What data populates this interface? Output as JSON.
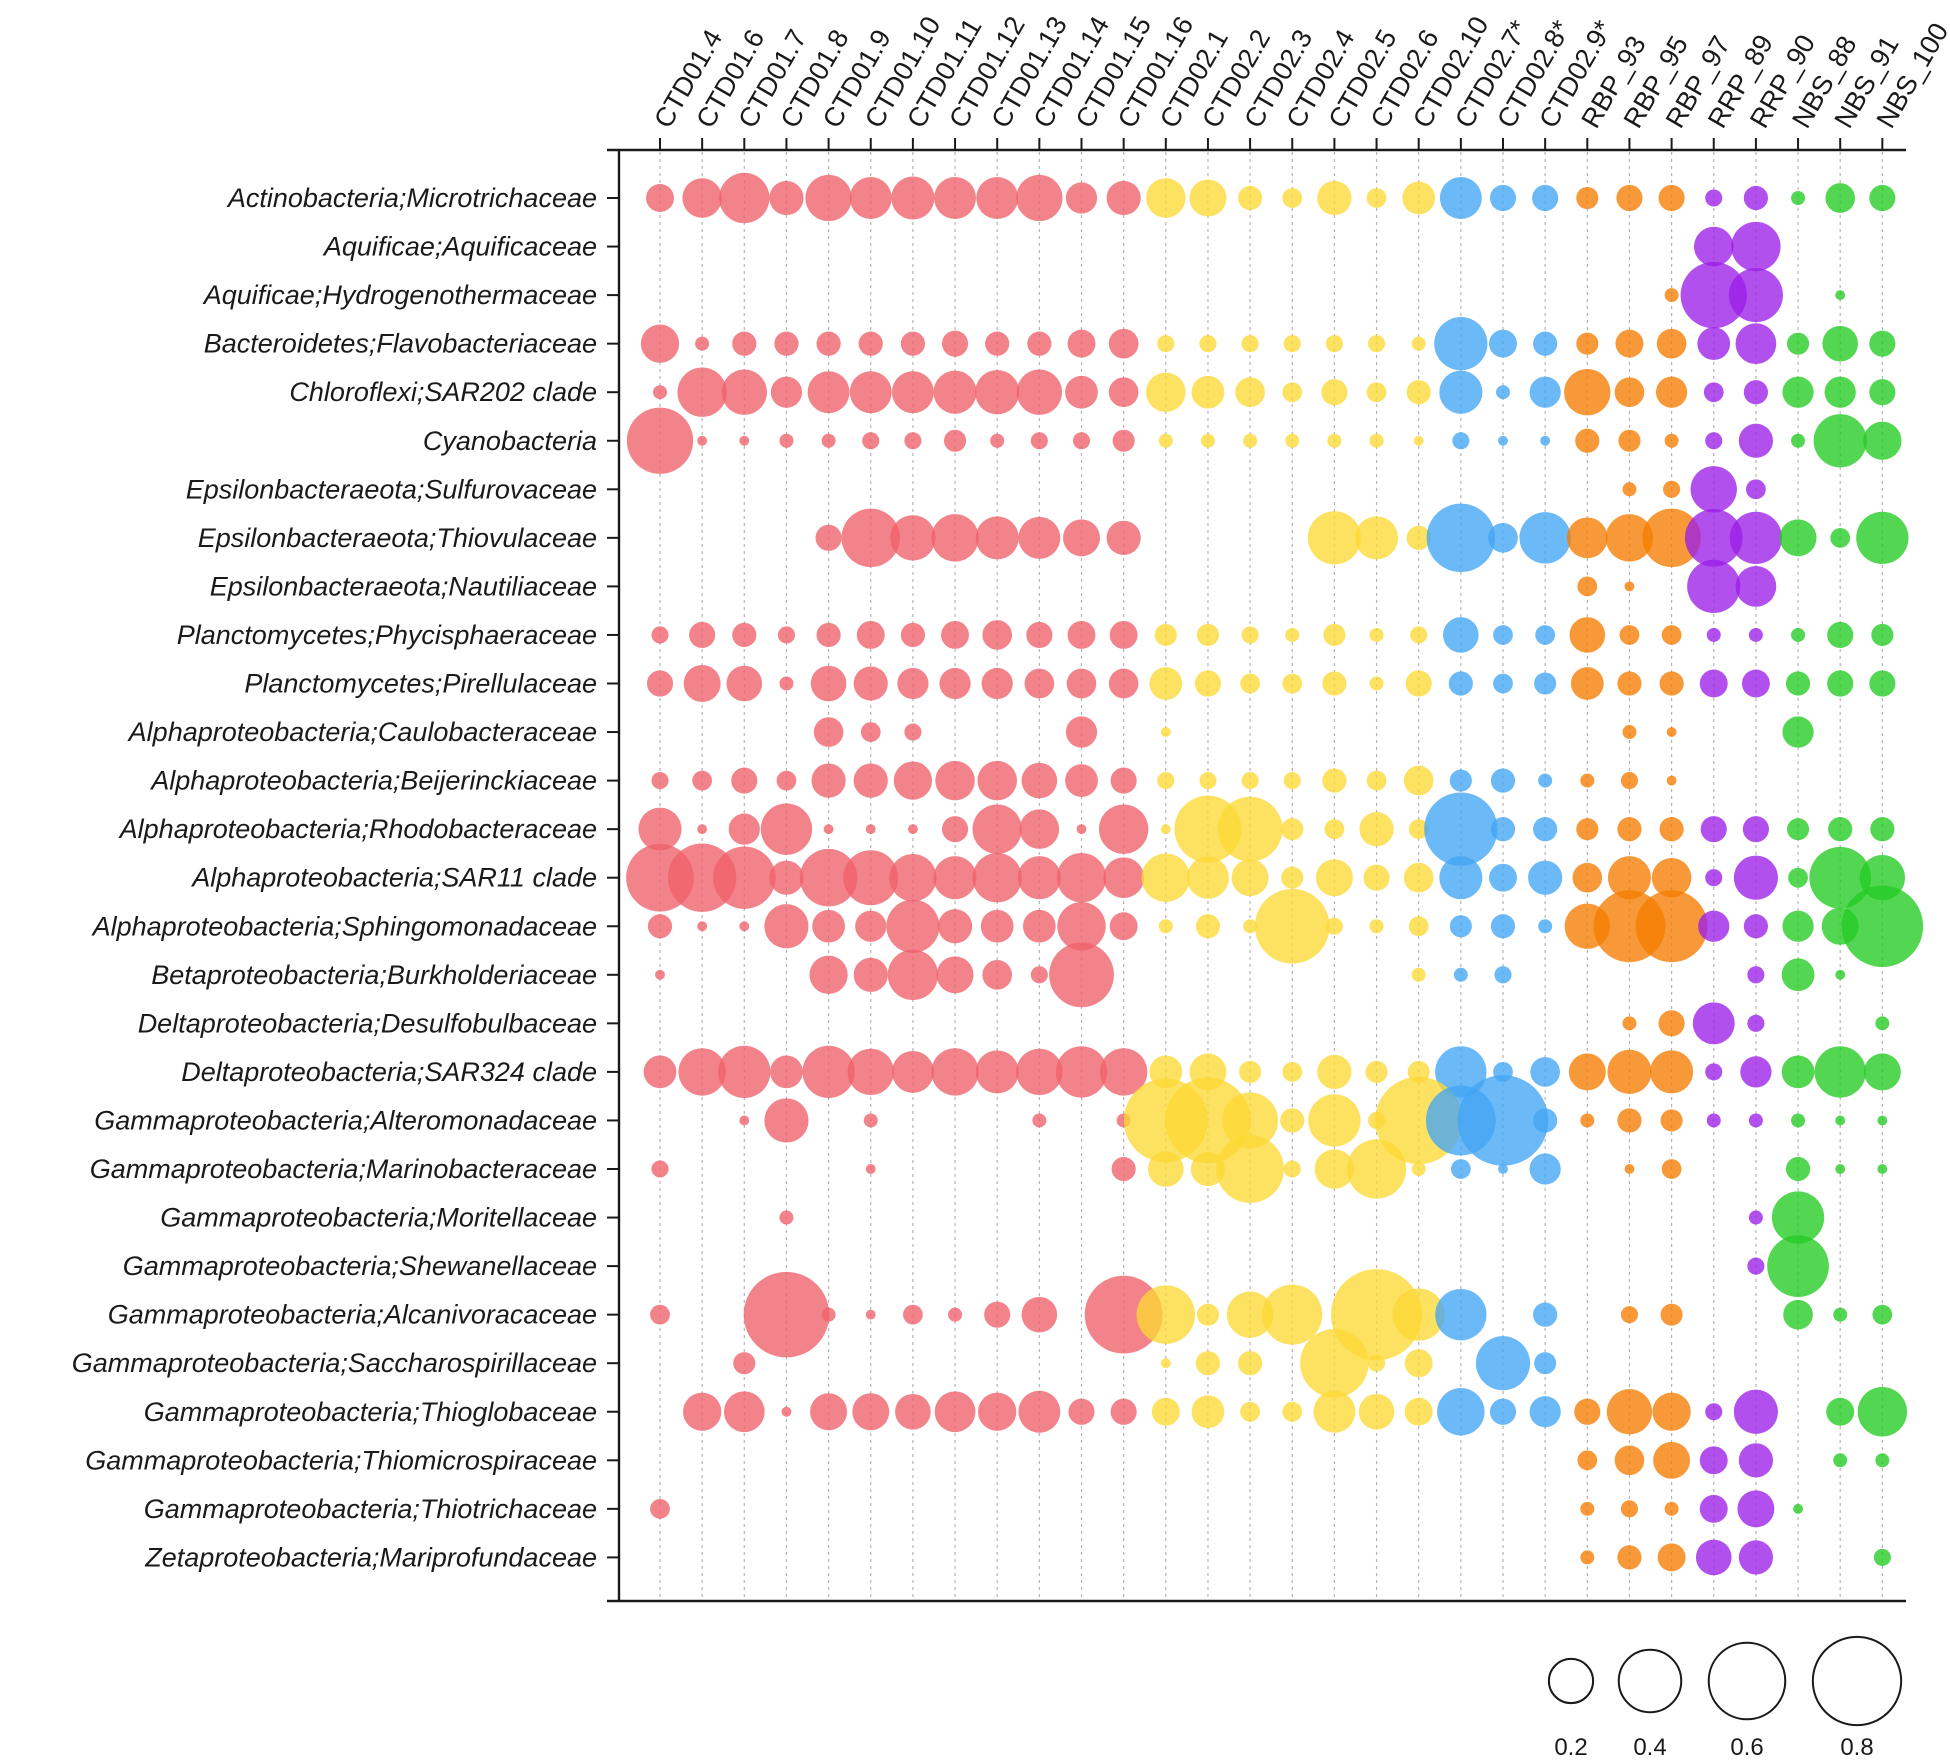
{
  "chart_data": {
    "type": "bubble",
    "title": "",
    "columns": [
      "CTD01.4",
      "CTD01.6",
      "CTD01.7",
      "CTD01.8",
      "CTD01.9",
      "CTD01.10",
      "CTD01.11",
      "CTD01.12",
      "CTD01.13",
      "CTD01.14",
      "CTD01.15",
      "CTD01.16",
      "CTD02.1",
      "CTD02.2",
      "CTD02.3",
      "CTD02.4",
      "CTD02.5",
      "CTD02.6",
      "CTD02.10",
      "CTD02.7*",
      "CTD02.8*",
      "CTD02.9*",
      "RBP_93",
      "RBP_95",
      "RBP_97",
      "RRP_89",
      "RRP_90",
      "NBS_88",
      "NBS_91",
      "NBS_100"
    ],
    "column_groups": [
      "CTD01",
      "CTD01",
      "CTD01",
      "CTD01",
      "CTD01",
      "CTD01",
      "CTD01",
      "CTD01",
      "CTD01",
      "CTD01",
      "CTD01",
      "CTD01",
      "CTD02",
      "CTD02",
      "CTD02",
      "CTD02",
      "CTD02",
      "CTD02",
      "CTD02",
      "CTD02*",
      "CTD02*",
      "CTD02*",
      "RBP",
      "RBP",
      "RBP",
      "RRP",
      "RRP",
      "NBS",
      "NBS",
      "NBS"
    ],
    "group_colors": {
      "CTD01": "#f0606a",
      "CTD02": "#fdd835",
      "CTD02*": "#42a5f5",
      "RBP": "#f57c00",
      "RRP": "#9b1fe8",
      "NBS": "#22cc22"
    },
    "rows": [
      "Actinobacteria;Microtrichaceae",
      "Aquificae;Aquificaceae",
      "Aquificae;Hydrogenothermaceae",
      "Bacteroidetes;Flavobacteriaceae",
      "Chloroflexi;SAR202 clade",
      "Cyanobacteria",
      "Epsilonbacteraeota;Sulfurovaceae",
      "Epsilonbacteraeota;Thiovulaceae",
      "Epsilonbacteraeota;Nautiliaceae",
      "Planctomycetes;Phycisphaeraceae",
      "Planctomycetes;Pirellulaceae",
      "Alphaproteobacteria;Caulobacteraceae",
      "Alphaproteobacteria;Beijerinckiaceae",
      "Alphaproteobacteria;Rhodobacteraceae",
      "Alphaproteobacteria;SAR11 clade",
      "Alphaproteobacteria;Sphingomonadaceae",
      "Betaproteobacteria;Burkholderiaceae",
      "Deltaproteobacteria;Desulfobulbaceae",
      "Deltaproteobacteria;SAR324 clade",
      "Gammaproteobacteria;Alteromonadaceae",
      "Gammaproteobacteria;Marinobacteraceae",
      "Gammaproteobacteria;Moritellaceae",
      "Gammaproteobacteria;Shewanellaceae",
      "Gammaproteobacteria;Alcanivoracaceae",
      "Gammaproteobacteria;Saccharospirillaceae",
      "Gammaproteobacteria;Thioglobaceae",
      "Gammaproteobacteria;Thiomicrospiraceae",
      "Gammaproteobacteria;Thiotrichaceae",
      "Zetaproteobacteria;Mariprofundaceae"
    ],
    "values": [
      [
        0.08,
        0.16,
        0.26,
        0.12,
        0.22,
        0.18,
        0.19,
        0.18,
        0.18,
        0.22,
        0.1,
        0.12,
        0.16,
        0.14,
        0.06,
        0.04,
        0.12,
        0.04,
        0.11,
        0.18,
        0.07,
        0.07,
        0.05,
        0.07,
        0.07,
        0.03,
        0.06,
        0.02,
        0.09,
        0.07
      ],
      [
        0,
        0,
        0,
        0,
        0,
        0,
        0,
        0,
        0,
        0,
        0,
        0,
        0,
        0,
        0,
        0,
        0,
        0,
        0,
        0,
        0,
        0,
        0,
        0,
        0,
        0.16,
        0.25,
        0,
        0,
        0
      ],
      [
        0,
        0,
        0,
        0,
        0,
        0,
        0,
        0,
        0,
        0,
        0,
        0,
        0,
        0,
        0,
        0,
        0,
        0,
        0,
        0,
        0,
        0,
        0,
        0,
        0.02,
        0.45,
        0.3,
        0,
        0.01,
        0
      ],
      [
        0.15,
        0.02,
        0.06,
        0.06,
        0.06,
        0.06,
        0.06,
        0.07,
        0.06,
        0.06,
        0.08,
        0.09,
        0.03,
        0.03,
        0.03,
        0.03,
        0.03,
        0.03,
        0.02,
        0.29,
        0.08,
        0.06,
        0.05,
        0.08,
        0.09,
        0.11,
        0.17,
        0.05,
        0.13,
        0.07
      ],
      [
        0.02,
        0.25,
        0.21,
        0.1,
        0.18,
        0.18,
        0.18,
        0.19,
        0.2,
        0.21,
        0.11,
        0.09,
        0.16,
        0.11,
        0.09,
        0.04,
        0.07,
        0.04,
        0.06,
        0.19,
        0.02,
        0.1,
        0.22,
        0.09,
        0.1,
        0.04,
        0.06,
        0.1,
        0.1,
        0.07
      ],
      [
        0.45,
        0.01,
        0.01,
        0.02,
        0.02,
        0.03,
        0.03,
        0.05,
        0.02,
        0.03,
        0.03,
        0.05,
        0.02,
        0.02,
        0.02,
        0.02,
        0.02,
        0.02,
        0.01,
        0.03,
        0.01,
        0.01,
        0.06,
        0.05,
        0.02,
        0.03,
        0.12,
        0.02,
        0.29,
        0.15
      ],
      [
        0,
        0,
        0,
        0,
        0,
        0,
        0,
        0,
        0,
        0,
        0,
        0,
        0,
        0,
        0,
        0,
        0,
        0,
        0,
        0,
        0,
        0,
        0,
        0.02,
        0.03,
        0.22,
        0.04,
        0,
        0,
        0
      ],
      [
        0,
        0,
        0,
        0,
        0.07,
        0.35,
        0.21,
        0.23,
        0.19,
        0.18,
        0.14,
        0.12,
        0,
        0,
        0,
        0,
        0.29,
        0.19,
        0.06,
        0.48,
        0.09,
        0.27,
        0.17,
        0.23,
        0.35,
        0.34,
        0.28,
        0.14,
        0.04,
        0.28
      ],
      [
        0,
        0,
        0,
        0,
        0,
        0,
        0,
        0,
        0,
        0,
        0,
        0,
        0,
        0,
        0,
        0,
        0,
        0,
        0,
        0,
        0,
        0,
        0.04,
        0.01,
        0,
        0.29,
        0.17,
        0,
        0,
        0
      ],
      [
        0.03,
        0.07,
        0.06,
        0.03,
        0.06,
        0.08,
        0.06,
        0.08,
        0.09,
        0.07,
        0.08,
        0.08,
        0.05,
        0.05,
        0.03,
        0.02,
        0.05,
        0.02,
        0.03,
        0.13,
        0.04,
        0.04,
        0.13,
        0.04,
        0.04,
        0.02,
        0.02,
        0.02,
        0.07,
        0.05
      ],
      [
        0.07,
        0.14,
        0.13,
        0.02,
        0.13,
        0.12,
        0.1,
        0.1,
        0.1,
        0.09,
        0.09,
        0.09,
        0.11,
        0.07,
        0.04,
        0.04,
        0.06,
        0.02,
        0.07,
        0.06,
        0.04,
        0.05,
        0.11,
        0.06,
        0.06,
        0.08,
        0.08,
        0.06,
        0.07,
        0.07
      ],
      [
        0,
        0,
        0,
        0,
        0.09,
        0.04,
        0.03,
        0,
        0,
        0,
        0.1,
        0,
        0.01,
        0,
        0,
        0,
        0,
        0,
        0,
        0,
        0,
        0,
        0,
        0.02,
        0.01,
        0,
        0,
        0.1,
        0,
        0
      ],
      [
        0.03,
        0.04,
        0.07,
        0.04,
        0.12,
        0.12,
        0.15,
        0.16,
        0.16,
        0.13,
        0.11,
        0.07,
        0.03,
        0.03,
        0.03,
        0.03,
        0.06,
        0.04,
        0.09,
        0.05,
        0.06,
        0.02,
        0.02,
        0.03,
        0.01,
        0,
        0,
        0,
        0,
        0
      ],
      [
        0.19,
        0.01,
        0.1,
        0.27,
        0.01,
        0.01,
        0.01,
        0.07,
        0.25,
        0.16,
        0.01,
        0.25,
        0.01,
        0.46,
        0.43,
        0.05,
        0.04,
        0.12,
        0.04,
        0.55,
        0.06,
        0.06,
        0.05,
        0.06,
        0.06,
        0.07,
        0.07,
        0.05,
        0.06,
        0.06
      ],
      [
        0.47,
        0.48,
        0.4,
        0.12,
        0.34,
        0.31,
        0.23,
        0.19,
        0.25,
        0.19,
        0.25,
        0.17,
        0.24,
        0.18,
        0.14,
        0.05,
        0.14,
        0.07,
        0.09,
        0.19,
        0.08,
        0.12,
        0.09,
        0.19,
        0.16,
        0.03,
        0.2,
        0.04,
        0.39,
        0.21
      ],
      [
        0.06,
        0.01,
        0.01,
        0.2,
        0.11,
        0.1,
        0.29,
        0.12,
        0.11,
        0.11,
        0.24,
        0.08,
        0.02,
        0.06,
        0.02,
        0.57,
        0.03,
        0.02,
        0.04,
        0.05,
        0.06,
        0.02,
        0.21,
        0.53,
        0.53,
        0.1,
        0.06,
        0.1,
        0.14,
        0.68
      ],
      [
        0.01,
        0,
        0,
        0,
        0.15,
        0.12,
        0.26,
        0.14,
        0.09,
        0.03,
        0.43,
        0,
        0,
        0,
        0,
        0,
        0,
        0,
        0.02,
        0.02,
        0.03,
        0,
        0,
        0,
        0,
        0,
        0.03,
        0.11,
        0.01,
        0
      ],
      [
        0,
        0,
        0,
        0,
        0,
        0,
        0,
        0,
        0,
        0,
        0,
        0,
        0,
        0,
        0,
        0,
        0,
        0,
        0,
        0,
        0,
        0,
        0,
        0.02,
        0.07,
        0.18,
        0.03,
        0,
        0,
        0.02
      ],
      [
        0.11,
        0.23,
        0.28,
        0.11,
        0.28,
        0.22,
        0.18,
        0.23,
        0.19,
        0.22,
        0.27,
        0.23,
        0.11,
        0.14,
        0.05,
        0.04,
        0.12,
        0.05,
        0.05,
        0.27,
        0.04,
        0.09,
        0.14,
        0.2,
        0.19,
        0.03,
        0.1,
        0.11,
        0.27,
        0.14
      ],
      [
        0,
        0,
        0.01,
        0.2,
        0,
        0.02,
        0,
        0,
        0,
        0.02,
        0,
        0.02,
        0.72,
        0.75,
        0.32,
        0.06,
        0.28,
        0.03,
        0.78,
        0.5,
        0.84,
        0.06,
        0.02,
        0.06,
        0.05,
        0.02,
        0.02,
        0.02,
        0.01,
        0.01
      ],
      [
        0.03,
        0,
        0,
        0,
        0,
        0.01,
        0,
        0,
        0,
        0,
        0,
        0.06,
        0.13,
        0.12,
        0.47,
        0.03,
        0.16,
        0.36,
        0.02,
        0.04,
        0.01,
        0.1,
        0,
        0.01,
        0.04,
        0,
        0,
        0.06,
        0.01,
        0.01
      ],
      [
        0,
        0,
        0,
        0.02,
        0,
        0,
        0,
        0,
        0,
        0,
        0,
        0,
        0,
        0,
        0,
        0,
        0,
        0,
        0,
        0,
        0,
        0,
        0,
        0,
        0,
        0,
        0.02,
        0.28,
        0,
        0
      ],
      [
        0,
        0,
        0,
        0,
        0,
        0,
        0,
        0,
        0,
        0,
        0,
        0,
        0,
        0,
        0,
        0,
        0,
        0,
        0,
        0,
        0,
        0,
        0,
        0,
        0,
        0,
        0.03,
        0.39,
        0,
        0
      ],
      [
        0.04,
        0,
        0,
        0.75,
        0.02,
        0.01,
        0.04,
        0.02,
        0.07,
        0.13,
        0,
        0.62,
        0.35,
        0.05,
        0.22,
        0.37,
        0,
        0.85,
        0.28,
        0.27,
        0,
        0.06,
        0,
        0.03,
        0.05,
        0,
        0,
        0.09,
        0.02,
        0.04
      ],
      [
        0,
        0,
        0.05,
        0,
        0,
        0,
        0,
        0,
        0,
        0,
        0,
        0,
        0.01,
        0.06,
        0.06,
        0,
        0.48,
        0.03,
        0.08,
        0,
        0.3,
        0.05,
        0,
        0,
        0,
        0,
        0,
        0,
        0,
        0
      ],
      [
        0,
        0.15,
        0.17,
        0.01,
        0.14,
        0.14,
        0.13,
        0.17,
        0.15,
        0.18,
        0.07,
        0.07,
        0.08,
        0.11,
        0.04,
        0.04,
        0.18,
        0.13,
        0.08,
        0.23,
        0.07,
        0.1,
        0.07,
        0.21,
        0.15,
        0.03,
        0.2,
        0,
        0.08,
        0.25
      ],
      [
        0,
        0,
        0,
        0,
        0,
        0,
        0,
        0,
        0,
        0,
        0,
        0,
        0,
        0,
        0,
        0,
        0,
        0,
        0,
        0,
        0,
        0,
        0.04,
        0.09,
        0.14,
        0.08,
        0.12,
        0,
        0.02,
        0.02
      ],
      [
        0.04,
        0,
        0,
        0,
        0,
        0,
        0,
        0,
        0,
        0,
        0,
        0,
        0,
        0,
        0,
        0,
        0,
        0,
        0,
        0,
        0,
        0,
        0.02,
        0.03,
        0.02,
        0.08,
        0.14,
        0.01,
        0,
        0
      ],
      [
        0,
        0,
        0,
        0,
        0,
        0,
        0,
        0,
        0,
        0,
        0,
        0,
        0,
        0,
        0,
        0,
        0,
        0,
        0,
        0,
        0,
        0,
        0.02,
        0.06,
        0.08,
        0.13,
        0.12,
        0,
        0,
        0.03
      ]
    ],
    "legend": {
      "type": "size",
      "placement": "bottom-right",
      "values": [
        0.2,
        0.4,
        0.6,
        0.8
      ],
      "labels": [
        "0.2",
        "0.4",
        "0.6",
        "0.8"
      ]
    },
    "xlabel": "",
    "ylabel": "",
    "grid": true
  }
}
